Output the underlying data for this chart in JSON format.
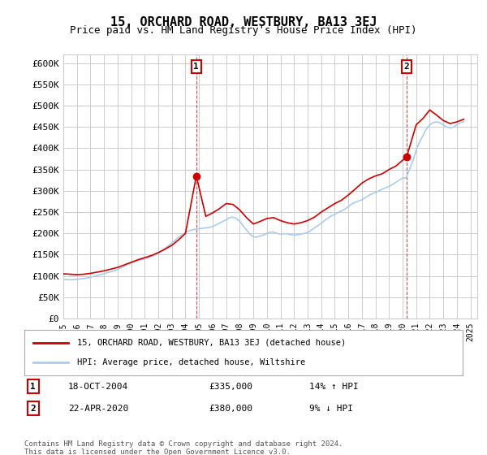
{
  "title": "15, ORCHARD ROAD, WESTBURY, BA13 3EJ",
  "subtitle": "Price paid vs. HM Land Registry's House Price Index (HPI)",
  "title_fontsize": 11,
  "subtitle_fontsize": 9,
  "background_color": "#ffffff",
  "grid_color": "#cccccc",
  "plot_bg_color": "#ffffff",
  "red_line_color": "#cc0000",
  "blue_line_color": "#aaccee",
  "sale1_x": 2004.8,
  "sale1_y": 335000,
  "sale1_label": "1",
  "sale1_date": "18-OCT-2004",
  "sale1_price": "£335,000",
  "sale1_hpi": "14% ↑ HPI",
  "sale2_x": 2020.3,
  "sale2_y": 380000,
  "sale2_label": "2",
  "sale2_date": "22-APR-2020",
  "sale2_price": "£380,000",
  "sale2_hpi": "9% ↓ HPI",
  "xmin": 1995,
  "xmax": 2025.5,
  "ymin": 0,
  "ymax": 620000,
  "yticks": [
    0,
    50000,
    100000,
    150000,
    200000,
    250000,
    300000,
    350000,
    400000,
    450000,
    500000,
    550000,
    600000
  ],
  "ytick_labels": [
    "£0",
    "£50K",
    "£100K",
    "£150K",
    "£200K",
    "£250K",
    "£300K",
    "£350K",
    "£400K",
    "£450K",
    "£500K",
    "£550K",
    "£600K"
  ],
  "xticks": [
    1995,
    1996,
    1997,
    1998,
    1999,
    2000,
    2001,
    2002,
    2003,
    2004,
    2005,
    2006,
    2007,
    2008,
    2009,
    2010,
    2011,
    2012,
    2013,
    2014,
    2015,
    2016,
    2017,
    2018,
    2019,
    2020,
    2021,
    2022,
    2023,
    2024,
    2025
  ],
  "legend_label_red": "15, ORCHARD ROAD, WESTBURY, BA13 3EJ (detached house)",
  "legend_label_blue": "HPI: Average price, detached house, Wiltshire",
  "footer": "Contains HM Land Registry data © Crown copyright and database right 2024.\nThis data is licensed under the Open Government Licence v3.0.",
  "hpi_x": [
    1995.0,
    1995.25,
    1995.5,
    1995.75,
    1996.0,
    1996.25,
    1996.5,
    1996.75,
    1997.0,
    1997.25,
    1997.5,
    1997.75,
    1998.0,
    1998.25,
    1998.5,
    1998.75,
    1999.0,
    1999.25,
    1999.5,
    1999.75,
    2000.0,
    2000.25,
    2000.5,
    2000.75,
    2001.0,
    2001.25,
    2001.5,
    2001.75,
    2002.0,
    2002.25,
    2002.5,
    2002.75,
    2003.0,
    2003.25,
    2003.5,
    2003.75,
    2004.0,
    2004.25,
    2004.5,
    2004.75,
    2005.0,
    2005.25,
    2005.5,
    2005.75,
    2006.0,
    2006.25,
    2006.5,
    2006.75,
    2007.0,
    2007.25,
    2007.5,
    2007.75,
    2008.0,
    2008.25,
    2008.5,
    2008.75,
    2009.0,
    2009.25,
    2009.5,
    2009.75,
    2010.0,
    2010.25,
    2010.5,
    2010.75,
    2011.0,
    2011.25,
    2011.5,
    2011.75,
    2012.0,
    2012.25,
    2012.5,
    2012.75,
    2013.0,
    2013.25,
    2013.5,
    2013.75,
    2014.0,
    2014.25,
    2014.5,
    2014.75,
    2015.0,
    2015.25,
    2015.5,
    2015.75,
    2016.0,
    2016.25,
    2016.5,
    2016.75,
    2017.0,
    2017.25,
    2017.5,
    2017.75,
    2018.0,
    2018.25,
    2018.5,
    2018.75,
    2019.0,
    2019.25,
    2019.5,
    2019.75,
    2020.0,
    2020.25,
    2020.5,
    2020.75,
    2021.0,
    2021.25,
    2021.5,
    2021.75,
    2022.0,
    2022.25,
    2022.5,
    2022.75,
    2023.0,
    2023.25,
    2023.5,
    2023.75,
    2024.0,
    2024.25,
    2024.5
  ],
  "hpi_y": [
    92000,
    91500,
    91000,
    91500,
    92000,
    93000,
    94000,
    95000,
    97000,
    99000,
    101000,
    103000,
    105000,
    108000,
    110000,
    112000,
    115000,
    119000,
    123000,
    127000,
    130000,
    133000,
    136000,
    138000,
    140000,
    143000,
    146000,
    149000,
    153000,
    159000,
    165000,
    171000,
    177000,
    184000,
    191000,
    197000,
    202000,
    206000,
    208000,
    210000,
    211000,
    212000,
    213000,
    214000,
    216000,
    220000,
    224000,
    228000,
    232000,
    237000,
    238000,
    235000,
    228000,
    218000,
    208000,
    198000,
    192000,
    191000,
    194000,
    196000,
    200000,
    203000,
    203000,
    200000,
    198000,
    199000,
    199000,
    197000,
    196000,
    197000,
    198000,
    200000,
    202000,
    207000,
    213000,
    218000,
    224000,
    230000,
    236000,
    241000,
    245000,
    249000,
    253000,
    257000,
    263000,
    269000,
    273000,
    276000,
    279000,
    284000,
    289000,
    293000,
    296000,
    300000,
    304000,
    307000,
    310000,
    315000,
    320000,
    325000,
    330000,
    330000,
    350000,
    370000,
    395000,
    415000,
    430000,
    445000,
    455000,
    460000,
    462000,
    460000,
    455000,
    450000,
    448000,
    450000,
    455000,
    460000,
    463000
  ],
  "red_x": [
    1995.0,
    1995.5,
    1996.0,
    1996.5,
    1997.0,
    1997.5,
    1998.0,
    1998.5,
    1999.0,
    1999.5,
    2000.0,
    2000.5,
    2001.0,
    2001.5,
    2002.0,
    2002.5,
    2003.0,
    2003.5,
    2004.0,
    2004.8,
    2005.5,
    2006.0,
    2006.5,
    2007.0,
    2007.5,
    2008.0,
    2008.5,
    2009.0,
    2009.5,
    2010.0,
    2010.5,
    2011.0,
    2011.5,
    2012.0,
    2012.5,
    2013.0,
    2013.5,
    2014.0,
    2014.5,
    2015.0,
    2015.5,
    2016.0,
    2016.5,
    2017.0,
    2017.5,
    2018.0,
    2018.5,
    2019.0,
    2019.5,
    2020.3,
    2021.0,
    2021.5,
    2022.0,
    2022.5,
    2023.0,
    2023.5,
    2024.0,
    2024.5
  ],
  "red_y": [
    105000,
    104000,
    103000,
    104000,
    106000,
    109000,
    112000,
    116000,
    120000,
    126000,
    132000,
    138000,
    143000,
    148000,
    155000,
    163000,
    172000,
    185000,
    200000,
    335000,
    240000,
    248000,
    258000,
    270000,
    268000,
    255000,
    237000,
    222000,
    228000,
    235000,
    237000,
    230000,
    225000,
    222000,
    225000,
    230000,
    238000,
    250000,
    260000,
    270000,
    278000,
    290000,
    304000,
    318000,
    328000,
    335000,
    340000,
    350000,
    358000,
    380000,
    455000,
    470000,
    490000,
    478000,
    465000,
    458000,
    462000,
    468000
  ]
}
